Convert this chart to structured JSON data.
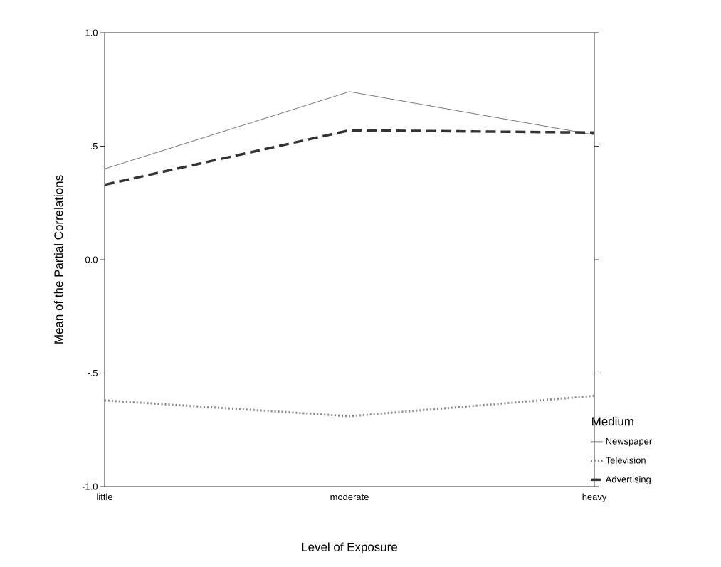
{
  "chart_data": {
    "type": "line",
    "xlabel": "Level of Exposure",
    "ylabel": "Mean of the Partial Correlations",
    "legend_title": "Medium",
    "categories": [
      "little",
      "moderate",
      "heavy"
    ],
    "series": [
      {
        "name": "Newspaper",
        "color": "#555555",
        "line_style": "solid",
        "values": [
          0.4,
          0.74,
          0.55
        ]
      },
      {
        "name": "Television",
        "color": "#888888",
        "line_style": "dotted",
        "values": [
          -0.62,
          -0.69,
          -0.6
        ]
      },
      {
        "name": "Advertising",
        "color": "#333333",
        "line_style": "dashed",
        "values": [
          0.33,
          0.57,
          0.56
        ]
      }
    ],
    "ylim": [
      -1.0,
      1.0
    ],
    "yticks": [
      {
        "value": -1.0,
        "label": "-1.0"
      },
      {
        "value": -0.5,
        "label": "-.5"
      },
      {
        "value": 0.0,
        "label": "0.0"
      },
      {
        "value": 0.5,
        "label": ".5"
      },
      {
        "value": 1.0,
        "label": "1.0"
      }
    ],
    "grid": false,
    "legend": "right",
    "marker": "none"
  }
}
